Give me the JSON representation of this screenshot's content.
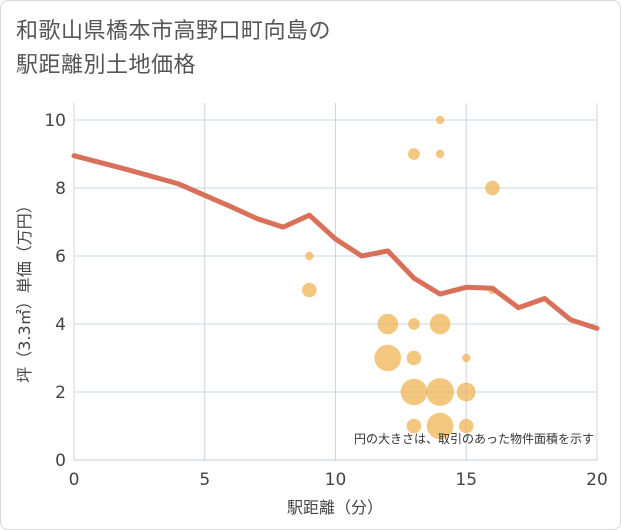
{
  "title_lines": [
    "和歌山県橋本市高野口町向島の",
    "駅距離別土地価格"
  ],
  "chart_data": {
    "type": "scatter",
    "xlabel": "駅距離（分）",
    "ylabel": "坪（3.3㎡）単価（万円）",
    "xlim": [
      0,
      20
    ],
    "ylim": [
      0,
      10.5
    ],
    "xticks": [
      0,
      5,
      10,
      15,
      20
    ],
    "yticks": [
      0,
      2,
      4,
      6,
      8,
      10
    ],
    "grid": true,
    "note": "円の大きさは、取引のあった物件面積を示す",
    "colors": {
      "points": "#f0b24f",
      "line": "#d9705a",
      "grid": "#c9d6e6"
    },
    "points": [
      {
        "x": 9,
        "y": 6.0,
        "size": 1
      },
      {
        "x": 9,
        "y": 5.0,
        "size": 3
      },
      {
        "x": 12,
        "y": 4.0,
        "size": 6
      },
      {
        "x": 12,
        "y": 3.0,
        "size": 10
      },
      {
        "x": 13,
        "y": 9.0,
        "size": 2
      },
      {
        "x": 13,
        "y": 4.0,
        "size": 2
      },
      {
        "x": 13,
        "y": 3.0,
        "size": 3
      },
      {
        "x": 13,
        "y": 2.0,
        "size": 10
      },
      {
        "x": 13,
        "y": 1.0,
        "size": 3
      },
      {
        "x": 14,
        "y": 10.0,
        "size": 1
      },
      {
        "x": 14,
        "y": 9.0,
        "size": 1
      },
      {
        "x": 14,
        "y": 4.0,
        "size": 6
      },
      {
        "x": 14,
        "y": 2.0,
        "size": 11
      },
      {
        "x": 14,
        "y": 1.0,
        "size": 10
      },
      {
        "x": 15,
        "y": 3.0,
        "size": 1
      },
      {
        "x": 15,
        "y": 2.0,
        "size": 5
      },
      {
        "x": 15,
        "y": 1.0,
        "size": 3
      },
      {
        "x": 16,
        "y": 8.0,
        "size": 3
      },
      {
        "x": 16,
        "y": 5.0,
        "size": 1
      }
    ],
    "trend": [
      {
        "x": 0,
        "y": 8.95
      },
      {
        "x": 2,
        "y": 8.55
      },
      {
        "x": 4,
        "y": 8.12
      },
      {
        "x": 6,
        "y": 7.45
      },
      {
        "x": 7,
        "y": 7.1
      },
      {
        "x": 8,
        "y": 6.85
      },
      {
        "x": 9,
        "y": 7.2
      },
      {
        "x": 10,
        "y": 6.5
      },
      {
        "x": 11,
        "y": 6.0
      },
      {
        "x": 12,
        "y": 6.15
      },
      {
        "x": 13,
        "y": 5.35
      },
      {
        "x": 14,
        "y": 4.88
      },
      {
        "x": 15,
        "y": 5.08
      },
      {
        "x": 16,
        "y": 5.05
      },
      {
        "x": 17,
        "y": 4.48
      },
      {
        "x": 18,
        "y": 4.75
      },
      {
        "x": 19,
        "y": 4.12
      },
      {
        "x": 20,
        "y": 3.87
      }
    ]
  }
}
